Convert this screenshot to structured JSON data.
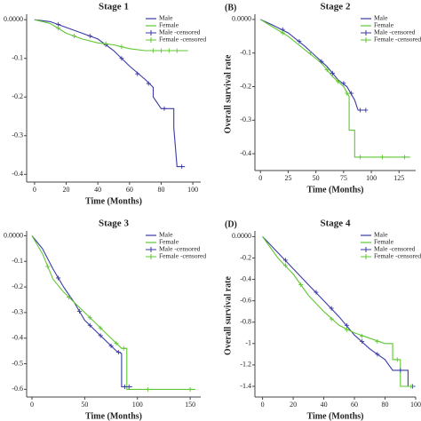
{
  "chart_data": [
    {
      "type": "line",
      "title": "Stage 1",
      "x_label": "Time (Months)",
      "xlim": [
        -5,
        105
      ],
      "xticks": [
        0,
        20,
        40,
        60,
        80,
        100
      ],
      "ylim": [
        -0.42,
        0.005
      ],
      "yticks": [
        {
          "value": 0,
          "label": "0.0000"
        },
        -0.1,
        -0.2,
        -0.3,
        -0.4
      ],
      "series": [
        {
          "name": "Male",
          "color": "#3a3aa6",
          "x": [
            0,
            10,
            20,
            30,
            40,
            50,
            60,
            70,
            75,
            75,
            80,
            88,
            88,
            90,
            95
          ],
          "values": [
            0,
            -0.005,
            -0.02,
            -0.035,
            -0.05,
            -0.08,
            -0.12,
            -0.155,
            -0.175,
            -0.2,
            -0.23,
            -0.23,
            -0.28,
            -0.38,
            -0.38
          ]
        },
        {
          "name": "Female",
          "color": "#5fc832",
          "x": [
            0,
            10,
            20,
            30,
            40,
            50,
            60,
            70,
            97
          ],
          "values": [
            0,
            -0.01,
            -0.035,
            -0.05,
            -0.06,
            -0.065,
            -0.075,
            -0.08,
            -0.08
          ]
        },
        {
          "name": "Male -censored",
          "color": "#3a3aa6",
          "marker": "plus",
          "x": [
            15,
            35,
            45,
            55,
            65,
            72,
            82,
            93
          ],
          "values": [
            -0.012,
            -0.042,
            -0.065,
            -0.1,
            -0.14,
            -0.165,
            -0.23,
            -0.38
          ]
        },
        {
          "name": "Female -censored",
          "color": "#5fc832",
          "marker": "plus",
          "x": [
            15,
            25,
            45,
            55,
            75,
            80,
            85,
            90
          ],
          "values": [
            -0.022,
            -0.042,
            -0.062,
            -0.07,
            -0.08,
            -0.08,
            -0.08,
            -0.08
          ]
        }
      ]
    },
    {
      "type": "line",
      "panel_label": "(B)",
      "title": "Stage 2",
      "x_label": "Time (Months)",
      "y_label": "Overall survival rate",
      "xlim": [
        -5,
        140
      ],
      "xticks": [
        0,
        25,
        50,
        75,
        100,
        125
      ],
      "ylim": [
        -0.45,
        0.005
      ],
      "yticks": [
        {
          "value": 0,
          "label": "0.0000"
        },
        -0.1,
        -0.2,
        -0.3,
        -0.4
      ],
      "series": [
        {
          "name": "Male",
          "color": "#3a3aa6",
          "x": [
            0,
            10,
            25,
            40,
            50,
            60,
            70,
            78,
            85,
            88,
            95
          ],
          "values": [
            0,
            -0.015,
            -0.04,
            -0.08,
            -0.11,
            -0.14,
            -0.18,
            -0.2,
            -0.24,
            -0.27,
            -0.27
          ]
        },
        {
          "name": "Female",
          "color": "#5fc832",
          "x": [
            0,
            10,
            25,
            40,
            55,
            65,
            75,
            80,
            80,
            85,
            85,
            135
          ],
          "values": [
            0,
            -0.02,
            -0.05,
            -0.09,
            -0.13,
            -0.17,
            -0.2,
            -0.23,
            -0.33,
            -0.33,
            -0.41,
            -0.41
          ]
        },
        {
          "name": "Male -censored",
          "color": "#3a3aa6",
          "marker": "plus",
          "x": [
            20,
            35,
            55,
            65,
            75,
            82,
            90,
            95
          ],
          "values": [
            -0.03,
            -0.065,
            -0.125,
            -0.16,
            -0.19,
            -0.22,
            -0.27,
            -0.27
          ]
        },
        {
          "name": "Female -censored",
          "color": "#5fc832",
          "marker": "plus",
          "x": [
            20,
            45,
            60,
            70,
            78,
            90,
            110,
            130
          ],
          "values": [
            -0.04,
            -0.1,
            -0.15,
            -0.185,
            -0.22,
            -0.41,
            -0.41,
            -0.41
          ]
        }
      ]
    },
    {
      "type": "line",
      "title": "Stage 3",
      "x_label": "Time (Months)",
      "xlim": [
        -5,
        160
      ],
      "xticks": [
        0,
        50,
        100,
        150
      ],
      "ylim": [
        -0.63,
        0.005
      ],
      "yticks": [
        {
          "value": 0,
          "label": "0.0000"
        },
        -0.1,
        -0.2,
        -0.3,
        -0.4,
        -0.5,
        -0.6
      ],
      "series": [
        {
          "name": "Male",
          "color": "#3a3aa6",
          "x": [
            0,
            10,
            20,
            30,
            40,
            50,
            60,
            70,
            80,
            85,
            85,
            95
          ],
          "values": [
            0,
            -0.05,
            -0.13,
            -0.2,
            -0.26,
            -0.33,
            -0.37,
            -0.41,
            -0.45,
            -0.46,
            -0.59,
            -0.59
          ]
        },
        {
          "name": "Female",
          "color": "#5fc832",
          "x": [
            0,
            10,
            20,
            30,
            40,
            50,
            60,
            70,
            85,
            90,
            90,
            155
          ],
          "values": [
            0,
            -0.07,
            -0.17,
            -0.22,
            -0.26,
            -0.3,
            -0.34,
            -0.38,
            -0.44,
            -0.44,
            -0.6,
            -0.6
          ]
        },
        {
          "name": "Male -censored",
          "color": "#3a3aa6",
          "marker": "plus",
          "x": [
            25,
            45,
            55,
            65,
            75,
            82,
            88,
            92
          ],
          "values": [
            -0.165,
            -0.295,
            -0.35,
            -0.39,
            -0.43,
            -0.455,
            -0.59,
            -0.59
          ]
        },
        {
          "name": "Female -censored",
          "color": "#5fc832",
          "marker": "plus",
          "x": [
            15,
            35,
            55,
            65,
            80,
            87,
            110,
            150
          ],
          "values": [
            -0.12,
            -0.24,
            -0.32,
            -0.36,
            -0.42,
            -0.44,
            -0.6,
            -0.6
          ]
        }
      ]
    },
    {
      "type": "line",
      "panel_label": "(D)",
      "title": "Stage 4",
      "x_label": "Time (Months)",
      "y_label": "Overall survival rate",
      "xlim": [
        -5,
        100
      ],
      "xticks": [
        0,
        20,
        40,
        60,
        80,
        100
      ],
      "ylim": [
        -1.5,
        0.02
      ],
      "yticks": [
        {
          "value": 0,
          "label": "0.0000"
        },
        -0.2,
        -0.4,
        -0.6,
        -0.8,
        -1.0,
        -1.2,
        -1.4
      ],
      "series": [
        {
          "name": "Male",
          "color": "#3a3aa6",
          "x": [
            0,
            10,
            20,
            30,
            40,
            50,
            60,
            70,
            80,
            85,
            95,
            95,
            100
          ],
          "values": [
            0,
            -0.15,
            -0.3,
            -0.45,
            -0.6,
            -0.75,
            -0.92,
            -1.05,
            -1.15,
            -1.25,
            -1.25,
            -1.4,
            -1.4
          ]
        },
        {
          "name": "Female",
          "color": "#5fc832",
          "x": [
            0,
            10,
            20,
            30,
            40,
            50,
            60,
            70,
            80,
            85,
            85,
            90,
            90,
            100
          ],
          "values": [
            0,
            -0.2,
            -0.35,
            -0.55,
            -0.7,
            -0.83,
            -0.9,
            -0.95,
            -1.0,
            -1.0,
            -1.15,
            -1.15,
            -1.4,
            -1.4
          ]
        },
        {
          "name": "Male -censored",
          "color": "#3a3aa6",
          "marker": "plus",
          "x": [
            15,
            35,
            45,
            55,
            65,
            75,
            90,
            98
          ],
          "values": [
            -0.22,
            -0.52,
            -0.67,
            -0.83,
            -0.98,
            -1.1,
            -1.25,
            -1.4
          ]
        },
        {
          "name": "Female -censored",
          "color": "#5fc832",
          "marker": "plus",
          "x": [
            15,
            25,
            45,
            55,
            65,
            75,
            88,
            97
          ],
          "values": [
            -0.27,
            -0.45,
            -0.77,
            -0.87,
            -0.93,
            -0.98,
            -1.15,
            -1.4
          ]
        }
      ]
    }
  ]
}
